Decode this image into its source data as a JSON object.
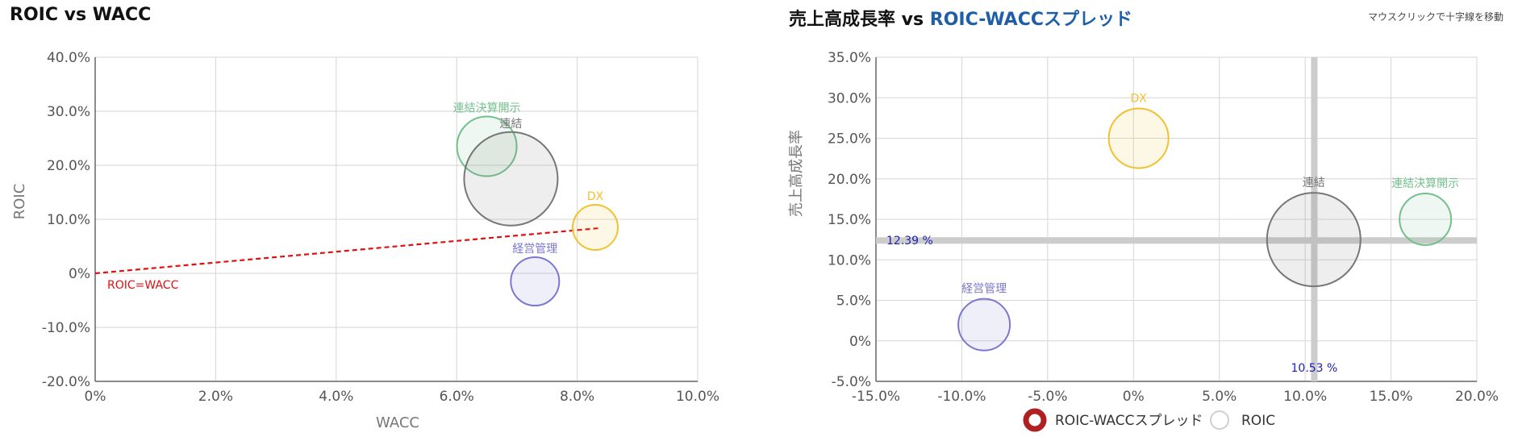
{
  "header": {
    "hint": "マウスクリックで十字線を移動"
  },
  "charts": [
    {
      "title": "ROIC vs WACC",
      "xlabel": "WACC",
      "ylabel": "ROIC",
      "ref_line_label": "ROIC=WACC",
      "xticks": [
        "0%",
        "2.0%",
        "4.0%",
        "6.0%",
        "8.0%",
        "10.0%"
      ],
      "yticks": [
        "40.0%",
        "30.0%",
        "20.0%",
        "10.0%",
        "0%",
        "-10.0%",
        "-20.0%"
      ]
    },
    {
      "title_main": "売上高成長率 vs ",
      "title_accent": "ROIC-WACCスプレッド",
      "ylabel": "売上高成長率",
      "xticks": [
        "-15.0%",
        "-10.0%",
        "-5.0%",
        "0%",
        "5.0%",
        "10.0%",
        "15.0%",
        "20.0%"
      ],
      "yticks": [
        "35.0%",
        "30.0%",
        "25.0%",
        "20.0%",
        "15.0%",
        "10.0%",
        "5.0%",
        "0%",
        "-5.0%"
      ],
      "crosshair_x_label": "10.53 %",
      "crosshair_y_label": "12.39 %",
      "legend": [
        "ROIC-WACCスプレッド",
        "ROIC"
      ]
    }
  ],
  "chart_data": [
    {
      "type": "bubble",
      "title": "ROIC vs WACC",
      "xlabel": "WACC",
      "ylabel": "ROIC",
      "xlim": [
        0,
        10
      ],
      "ylim": [
        -20,
        40
      ],
      "reference_line": {
        "label": "ROIC=WACC",
        "x": [
          0,
          8.4
        ],
        "y": [
          0,
          8.4
        ],
        "color": "#e01010"
      },
      "points": [
        {
          "label": "連結決算開示",
          "x": 6.5,
          "y": 23.5,
          "size": 37,
          "color": "#74c08d"
        },
        {
          "label": "連結",
          "x": 6.9,
          "y": 17.5,
          "size": 58,
          "color": "#777777"
        },
        {
          "label": "DX",
          "x": 8.3,
          "y": 8.5,
          "size": 28,
          "color": "#f2c12e"
        },
        {
          "label": "経営管理",
          "x": 7.3,
          "y": -1.5,
          "size": 30,
          "color": "#7b78d0"
        }
      ]
    },
    {
      "type": "bubble",
      "title": "売上高成長率 vs ROIC-WACCスプレッド",
      "ylabel": "売上高成長率",
      "xlim": [
        -15,
        20
      ],
      "ylim": [
        -5,
        35
      ],
      "crosshair": {
        "x": 10.53,
        "y": 12.39
      },
      "legend_position": "bottom",
      "points": [
        {
          "label": "DX",
          "x": 0.3,
          "y": 25,
          "size": 37,
          "color": "#f2c12e"
        },
        {
          "label": "連結",
          "x": 10.5,
          "y": 12.5,
          "size": 58,
          "color": "#777777"
        },
        {
          "label": "連結決算開示",
          "x": 17,
          "y": 15,
          "size": 32,
          "color": "#74c08d"
        },
        {
          "label": "経営管理",
          "x": -8.7,
          "y": 2,
          "size": 32,
          "color": "#7b78d0"
        }
      ]
    }
  ]
}
